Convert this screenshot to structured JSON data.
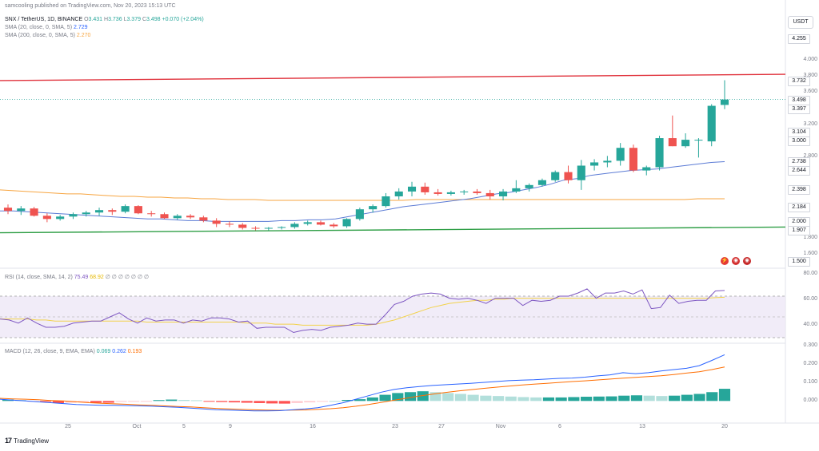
{
  "header": {
    "publisher": "samcooling published on TradingView.com, Nov 20, 2023 15:13 UTC",
    "symbol": "SNX / TetherUS, 1D, BINANCE",
    "o_label": "O",
    "o_value": "3.431",
    "h_label": "H",
    "h_value": "3.736",
    "l_label": "L",
    "l_value": "3.379",
    "c_label": "C",
    "c_value": "3.498",
    "change": "+0.070 (+2.04%)",
    "sma20_label": "SMA (20, close, 0, SMA, 5)",
    "sma20_value": "2.729",
    "sma200_label": "SMA (200, close, 0, SMA, 5)",
    "sma200_value": "2.270"
  },
  "currency_button": "USDT",
  "price_axis": {
    "ticks": [
      "4.000",
      "3.800",
      "3.600",
      "3.200",
      "2.800",
      "1.800",
      "1.600"
    ],
    "badges": [
      {
        "value": "4.255",
        "color": "#ffffff",
        "text": "#131722"
      },
      {
        "value": "3.732",
        "color": "#ffffff",
        "text": "#131722"
      },
      {
        "value": "3.498",
        "color": "#ffffff",
        "text": "#131722"
      },
      {
        "value": "3.397",
        "color": "#ffffff",
        "text": "#131722"
      },
      {
        "value": "3.104",
        "color": "#ffffff",
        "text": "#131722"
      },
      {
        "value": "3.000",
        "color": "#ffffff",
        "text": "#131722"
      },
      {
        "value": "2.738",
        "color": "#ffffff",
        "text": "#131722"
      },
      {
        "value": "2.644",
        "color": "#ffffff",
        "text": "#131722"
      },
      {
        "value": "2.398",
        "color": "#ffffff",
        "text": "#131722"
      },
      {
        "value": "2.184",
        "color": "#ffffff",
        "text": "#131722"
      },
      {
        "value": "2.000",
        "color": "#ffffff",
        "text": "#131722"
      },
      {
        "value": "1.907",
        "color": "#ffffff",
        "text": "#131722"
      },
      {
        "value": "1.500",
        "color": "#ffffff",
        "text": "#131722"
      }
    ]
  },
  "rsi": {
    "label": "RSI (14, close, SMA, 14, 2)",
    "value1": "75.49",
    "value2": "68.92",
    "placeholders": "∅ ∅ ∅ ∅ ∅ ∅ ∅",
    "ticks": [
      "80.00",
      "60.00",
      "40.00"
    ]
  },
  "macd": {
    "label": "MACD (12, 26, close, 9, EMA, EMA)",
    "value1": "0.069",
    "value2": "0.262",
    "value3": "0.193",
    "ticks": [
      "0.300",
      "0.200",
      "0.100",
      "0.000"
    ]
  },
  "time_axis": [
    "25",
    "Oct",
    "5",
    "9",
    "16",
    "23",
    "27",
    "Nov",
    "6",
    "13",
    "20"
  ],
  "logo": "TradingView",
  "colors": {
    "up": "#26a69a",
    "down": "#ef5350",
    "sma20": "#5b7bd5",
    "sma200": "#f7a541",
    "resistance": "#e0313b",
    "support": "#2e9e45",
    "rsi": "#7e57c2",
    "rsi_ma": "#f2d24b",
    "macd": "#2962ff",
    "signal": "#ff6d00"
  },
  "chart_data": {
    "type": "candlestick",
    "symbol": "SNX / TetherUS",
    "interval": "1D",
    "ylim": [
      1.5,
      4.255
    ],
    "candles": [
      [
        2.16,
        2.2,
        2.08,
        2.12
      ],
      [
        2.12,
        2.18,
        2.07,
        2.15
      ],
      [
        2.15,
        2.17,
        2.05,
        2.06
      ],
      [
        2.06,
        2.09,
        1.98,
        2.02
      ],
      [
        2.02,
        2.07,
        2.0,
        2.05
      ],
      [
        2.05,
        2.1,
        2.02,
        2.08
      ],
      [
        2.08,
        2.12,
        2.05,
        2.1
      ],
      [
        2.1,
        2.16,
        2.06,
        2.13
      ],
      [
        2.13,
        2.15,
        2.07,
        2.11
      ],
      [
        2.11,
        2.2,
        2.09,
        2.18
      ],
      [
        2.18,
        2.19,
        2.08,
        2.09
      ],
      [
        2.09,
        2.12,
        2.05,
        2.08
      ],
      [
        2.08,
        2.1,
        2.02,
        2.03
      ],
      [
        2.03,
        2.08,
        2.01,
        2.06
      ],
      [
        2.06,
        2.08,
        2.02,
        2.04
      ],
      [
        2.04,
        2.06,
        1.98,
        2.0
      ],
      [
        2.0,
        2.03,
        1.92,
        1.96
      ],
      [
        1.96,
        1.99,
        1.92,
        1.95
      ],
      [
        1.95,
        1.97,
        1.89,
        1.91
      ],
      [
        1.91,
        1.93,
        1.88,
        1.9
      ],
      [
        1.9,
        1.92,
        1.88,
        1.91
      ],
      [
        1.91,
        1.93,
        1.89,
        1.92
      ],
      [
        1.92,
        1.98,
        1.9,
        1.96
      ],
      [
        1.96,
        2.0,
        1.94,
        1.98
      ],
      [
        1.98,
        2.0,
        1.94,
        1.95
      ],
      [
        1.95,
        1.97,
        1.91,
        1.93
      ],
      [
        1.93,
        2.03,
        1.91,
        2.02
      ],
      [
        2.02,
        2.16,
        2.0,
        2.14
      ],
      [
        2.14,
        2.2,
        2.1,
        2.18
      ],
      [
        2.18,
        2.34,
        2.16,
        2.3
      ],
      [
        2.3,
        2.4,
        2.26,
        2.36
      ],
      [
        2.36,
        2.48,
        2.3,
        2.42
      ],
      [
        2.42,
        2.47,
        2.32,
        2.35
      ],
      [
        2.35,
        2.39,
        2.31,
        2.33
      ],
      [
        2.33,
        2.37,
        2.31,
        2.35
      ],
      [
        2.35,
        2.38,
        2.32,
        2.36
      ],
      [
        2.36,
        2.39,
        2.32,
        2.34
      ],
      [
        2.34,
        2.38,
        2.26,
        2.3
      ],
      [
        2.3,
        2.39,
        2.25,
        2.36
      ],
      [
        2.36,
        2.5,
        2.34,
        2.4
      ],
      [
        2.4,
        2.46,
        2.36,
        2.44
      ],
      [
        2.44,
        2.52,
        2.42,
        2.5
      ],
      [
        2.5,
        2.62,
        2.48,
        2.6
      ],
      [
        2.6,
        2.68,
        2.46,
        2.5
      ],
      [
        2.5,
        2.75,
        2.38,
        2.68
      ],
      [
        2.68,
        2.76,
        2.62,
        2.72
      ],
      [
        2.72,
        2.8,
        2.66,
        2.74
      ],
      [
        2.74,
        2.96,
        2.68,
        2.9
      ],
      [
        2.9,
        2.94,
        2.6,
        2.62
      ],
      [
        2.62,
        2.68,
        2.56,
        2.66
      ],
      [
        2.66,
        3.05,
        2.62,
        3.02
      ],
      [
        3.02,
        3.3,
        2.92,
        2.92
      ],
      [
        2.92,
        3.08,
        2.9,
        3.0
      ],
      [
        3.0,
        3.02,
        2.78,
        3.0
      ],
      [
        2.98,
        3.44,
        2.92,
        3.42
      ],
      [
        3.431,
        3.736,
        3.379,
        3.498
      ]
    ],
    "sma20": [
      2.12,
      2.12,
      2.11,
      2.1,
      2.09,
      2.08,
      2.07,
      2.06,
      2.05,
      2.04,
      2.03,
      2.02,
      2.02,
      2.01,
      2.0,
      2.0,
      1.99,
      1.99,
      1.99,
      1.99,
      1.99,
      2.0,
      2.0,
      2.01,
      2.01,
      2.02,
      2.05,
      2.08,
      2.11,
      2.14,
      2.17,
      2.19,
      2.21,
      2.23,
      2.25,
      2.27,
      2.3,
      2.33,
      2.35,
      2.38,
      2.41,
      2.45,
      2.5,
      2.52,
      2.56,
      2.58,
      2.6,
      2.62,
      2.63,
      2.64,
      2.66,
      2.68,
      2.7,
      2.72,
      2.729
    ],
    "sma200": [
      2.38,
      2.37,
      2.36,
      2.35,
      2.34,
      2.33,
      2.33,
      2.32,
      2.31,
      2.3,
      2.3,
      2.29,
      2.29,
      2.28,
      2.28,
      2.27,
      2.27,
      2.26,
      2.26,
      2.26,
      2.25,
      2.25,
      2.25,
      2.25,
      2.25,
      2.25,
      2.25,
      2.25,
      2.25,
      2.25,
      2.25,
      2.26,
      2.26,
      2.26,
      2.26,
      2.26,
      2.26,
      2.26,
      2.26,
      2.26,
      2.26,
      2.26,
      2.26,
      2.26,
      2.26,
      2.26,
      2.26,
      2.26,
      2.26,
      2.26,
      2.26,
      2.26,
      2.27,
      2.27,
      2.27
    ],
    "resistance": [
      3.732,
      3.81
    ],
    "support": [
      1.85,
      1.92
    ],
    "rsi_ylim": [
      30,
      80
    ],
    "rsi": [
      48,
      47,
      44,
      49,
      44,
      40,
      40,
      41,
      44,
      45,
      46,
      46,
      50,
      54,
      48,
      44,
      49,
      46,
      47,
      47,
      44,
      47,
      46,
      49,
      49,
      48,
      45,
      46,
      39,
      40,
      40,
      40,
      35,
      37,
      38,
      37,
      40,
      41,
      42,
      44,
      43,
      43,
      52,
      62,
      65,
      70,
      72,
      73,
      72,
      68,
      67,
      68,
      66,
      63,
      68,
      68,
      68,
      61,
      66,
      65,
      66,
      70,
      70,
      73,
      77,
      68,
      73,
      73,
      75,
      72,
      76,
      58,
      59,
      71,
      63,
      65,
      66,
      66,
      75,
      75.49
    ],
    "rsi_ma": [
      48,
      48,
      48,
      48,
      47,
      47,
      46,
      46,
      46,
      46,
      46,
      46,
      46,
      46,
      46,
      46,
      45,
      45,
      45,
      45,
      45,
      45,
      45,
      45,
      45,
      45,
      45,
      44,
      44,
      44,
      43,
      43,
      43,
      42,
      42,
      42,
      42,
      42,
      42,
      42,
      42,
      43,
      45,
      47,
      50,
      53,
      56,
      59,
      61,
      63,
      64,
      65,
      66,
      66,
      67,
      67,
      68,
      68,
      68,
      68,
      68,
      68,
      68,
      68,
      68,
      68,
      68,
      68,
      68,
      68,
      68,
      68,
      68,
      68,
      68,
      68,
      68,
      68,
      68.5,
      68.92
    ],
    "macd_ylim": [
      -0.08,
      0.3
    ],
    "macd": [
      0.01,
      0.005,
      0.0,
      -0.005,
      -0.01,
      -0.015,
      -0.02,
      -0.022,
      -0.025,
      -0.025,
      -0.026,
      -0.028,
      -0.03,
      -0.033,
      -0.036,
      -0.04,
      -0.045,
      -0.05,
      -0.052,
      -0.054,
      -0.056,
      -0.056,
      -0.055,
      -0.05,
      -0.045,
      -0.038,
      -0.025,
      -0.01,
      0.01,
      0.03,
      0.05,
      0.065,
      0.075,
      0.082,
      0.088,
      0.092,
      0.096,
      0.1,
      0.105,
      0.11,
      0.115,
      0.118,
      0.12,
      0.124,
      0.128,
      0.13,
      0.135,
      0.142,
      0.148,
      0.16,
      0.155,
      0.16,
      0.17,
      0.178,
      0.185,
      0.2,
      0.23,
      0.262
    ],
    "signal": [
      0.015,
      0.012,
      0.01,
      0.007,
      0.003,
      0.0,
      -0.005,
      -0.01,
      -0.013,
      -0.016,
      -0.019,
      -0.022,
      -0.025,
      -0.028,
      -0.031,
      -0.034,
      -0.038,
      -0.042,
      -0.045,
      -0.048,
      -0.05,
      -0.052,
      -0.053,
      -0.052,
      -0.051,
      -0.048,
      -0.044,
      -0.038,
      -0.03,
      -0.02,
      -0.008,
      0.004,
      0.016,
      0.028,
      0.038,
      0.048,
      0.056,
      0.064,
      0.071,
      0.078,
      0.084,
      0.09,
      0.095,
      0.1,
      0.105,
      0.11,
      0.114,
      0.119,
      0.124,
      0.129,
      0.134,
      0.138,
      0.143,
      0.15,
      0.158,
      0.165,
      0.178,
      0.193
    ],
    "histogram": [
      0.008,
      0.006,
      -0.003,
      -0.005,
      -0.012,
      -0.01,
      -0.008,
      -0.01,
      -0.01,
      -0.005,
      -0.004,
      -0.003,
      0.005,
      0.008,
      0.006,
      0.004,
      -0.004,
      -0.006,
      -0.008,
      -0.01,
      -0.012,
      -0.014,
      -0.015,
      -0.012,
      -0.008,
      -0.003,
      0.0,
      0.006,
      0.01,
      0.02,
      0.035,
      0.045,
      0.05,
      0.055,
      0.05,
      0.045,
      0.04,
      0.035,
      0.03,
      0.028,
      0.025,
      0.022,
      0.02,
      0.02,
      0.02,
      0.022,
      0.024,
      0.025,
      0.026,
      0.03,
      0.032,
      0.03,
      0.028,
      0.03,
      0.035,
      0.04,
      0.05,
      0.069
    ]
  }
}
